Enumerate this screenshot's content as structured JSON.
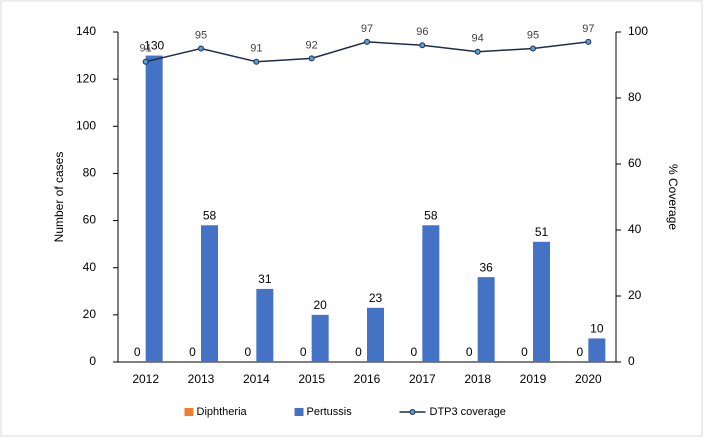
{
  "chart_data": {
    "type": "bar",
    "categories": [
      "2012",
      "2013",
      "2014",
      "2015",
      "2016",
      "2017",
      "2018",
      "2019",
      "2020"
    ],
    "series": [
      {
        "name": "Diphtheria",
        "color": "#ed7d31",
        "values": [
          0,
          0,
          0,
          0,
          0,
          0,
          0,
          0,
          0
        ]
      },
      {
        "name": "Pertussis",
        "color": "#4472c4",
        "values": [
          130,
          58,
          31,
          20,
          23,
          58,
          36,
          51,
          10
        ]
      },
      {
        "name": "DTP3 coverage",
        "color": "#1f2d4d",
        "type": "line",
        "axis": "y2",
        "values": [
          91,
          95,
          91,
          92,
          97,
          96,
          94,
          95,
          97
        ]
      }
    ],
    "y_label": "Number of cases",
    "y2_label": "% Coverage",
    "ylim": [
      0,
      140
    ],
    "yticks": [
      0,
      20,
      40,
      60,
      80,
      100,
      120,
      140
    ],
    "y2lim": [
      0,
      100
    ],
    "y2ticks": [
      0,
      20,
      40,
      60,
      80,
      100
    ],
    "grid": false,
    "legend": "bottom"
  }
}
